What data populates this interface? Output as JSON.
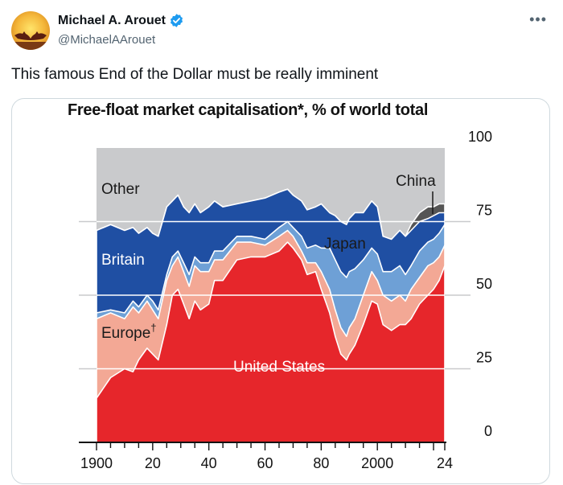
{
  "tweet": {
    "author_name": "Michael A. Arouet",
    "handle": "@MichaelAArouet",
    "text": "This famous End of the Dollar must be really imminent",
    "more_icon": "more-horizontal-icon",
    "verified_icon": "verified-badge-icon"
  },
  "colors": {
    "us": "#e6262b",
    "europe": "#f3a895",
    "japan": "#6ea0d6",
    "britain": "#1f4fa3",
    "china": "#555555",
    "other": "#c9cacc"
  },
  "chart_data": {
    "type": "area",
    "title": "Free-float market capitalisation*, % of world total",
    "xlabel": "",
    "ylabel": "",
    "xlim": [
      1900,
      2024
    ],
    "ylim": [
      0,
      100
    ],
    "x_ticks": [
      "1900",
      "20",
      "40",
      "60",
      "80",
      "2000",
      "24"
    ],
    "y_ticks": [
      "0",
      "25",
      "50",
      "75",
      "100"
    ],
    "grid": true,
    "series_labels": {
      "us": "United States",
      "europe": "Europe",
      "europe_dagger": "†",
      "japan": "Japan",
      "britain": "Britain",
      "china": "China",
      "other": "Other"
    },
    "x": [
      1900,
      1905,
      1910,
      1913,
      1915,
      1918,
      1920,
      1922,
      1925,
      1927,
      1929,
      1931,
      1933,
      1935,
      1937,
      1940,
      1942,
      1945,
      1950,
      1955,
      1960,
      1965,
      1968,
      1970,
      1973,
      1975,
      1978,
      1980,
      1983,
      1985,
      1987,
      1989,
      1990,
      1992,
      1995,
      1998,
      2000,
      2002,
      2005,
      2008,
      2010,
      2012,
      2015,
      2018,
      2020,
      2022,
      2024
    ],
    "series": [
      {
        "name": "United States",
        "cumulative": [
          15,
          22,
          25,
          24,
          28,
          32,
          30,
          28,
          40,
          50,
          52,
          47,
          42,
          48,
          45,
          47,
          55,
          55,
          62,
          63,
          63,
          65,
          68,
          66,
          62,
          57,
          58,
          52,
          44,
          36,
          30,
          28,
          30,
          33,
          40,
          48,
          47,
          40,
          38,
          40,
          40,
          42,
          47,
          50,
          52,
          55,
          60
        ]
      },
      {
        "name": "Europe",
        "cumulative": [
          42,
          44,
          42,
          46,
          44,
          48,
          45,
          42,
          55,
          60,
          63,
          58,
          53,
          60,
          58,
          58,
          62,
          62,
          68,
          68,
          67,
          70,
          72,
          70,
          65,
          61,
          61,
          58,
          52,
          45,
          39,
          36,
          39,
          42,
          50,
          58,
          55,
          50,
          48,
          50,
          48,
          52,
          56,
          60,
          61,
          63,
          67
        ]
      },
      {
        "name": "Japan",
        "cumulative": [
          44,
          45,
          44,
          48,
          46,
          50,
          48,
          45,
          57,
          63,
          65,
          61,
          57,
          63,
          61,
          61,
          65,
          65,
          70,
          70,
          69,
          73,
          75,
          73,
          70,
          66,
          67,
          66,
          66,
          62,
          58,
          56,
          58,
          59,
          62,
          66,
          64,
          58,
          58,
          60,
          57,
          60,
          65,
          68,
          69,
          71,
          74
        ]
      },
      {
        "name": "Britain",
        "cumulative": [
          72,
          74,
          72,
          73,
          71,
          73,
          71,
          70,
          80,
          82,
          84,
          80,
          78,
          81,
          78,
          80,
          82,
          80,
          81,
          82,
          83,
          85,
          86,
          84,
          82,
          79,
          80,
          81,
          78,
          77,
          75,
          74,
          76,
          78,
          78,
          82,
          80,
          70,
          69,
          72,
          70,
          72,
          75,
          76,
          77,
          78,
          78
        ]
      },
      {
        "name": "China",
        "cumulative": [
          72,
          74,
          72,
          73,
          71,
          73,
          71,
          70,
          80,
          82,
          84,
          80,
          78,
          81,
          78,
          80,
          82,
          80,
          81,
          82,
          83,
          85,
          86,
          84,
          82,
          79,
          80,
          81,
          78,
          77,
          75,
          74,
          76,
          78,
          78,
          82,
          80,
          70,
          69,
          72,
          70,
          74,
          78,
          80,
          80,
          81,
          81
        ]
      },
      {
        "name": "Other",
        "cumulative": [
          100,
          100,
          100,
          100,
          100,
          100,
          100,
          100,
          100,
          100,
          100,
          100,
          100,
          100,
          100,
          100,
          100,
          100,
          100,
          100,
          100,
          100,
          100,
          100,
          100,
          100,
          100,
          100,
          100,
          100,
          100,
          100,
          100,
          100,
          100,
          100,
          100,
          100,
          100,
          100,
          100,
          100,
          100,
          100,
          100,
          100,
          100
        ]
      }
    ]
  }
}
